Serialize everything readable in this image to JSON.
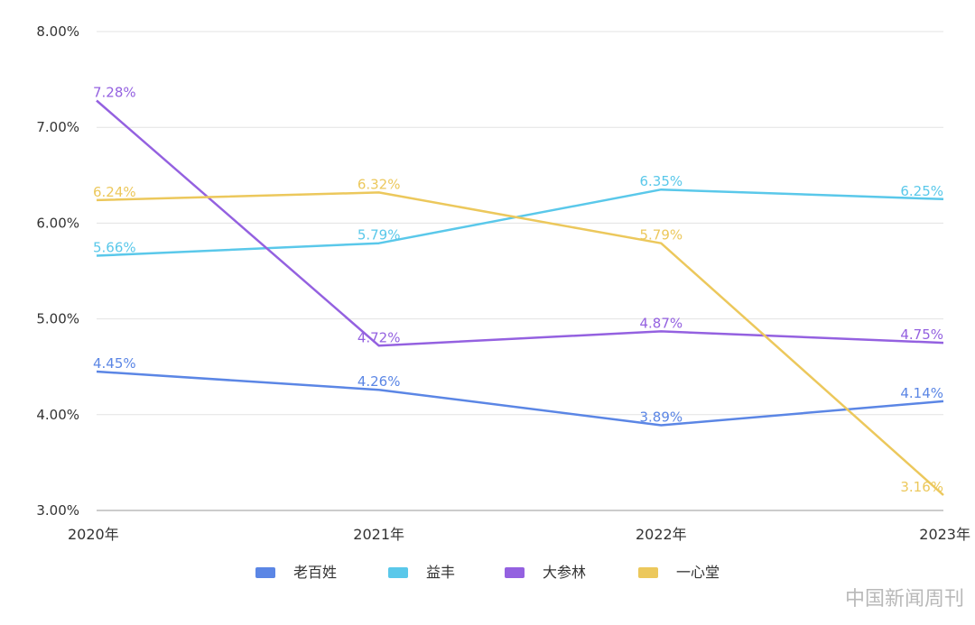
{
  "chart_data": {
    "type": "line",
    "x": [
      "2020年",
      "2021年",
      "2022年",
      "2023年"
    ],
    "ylim": [
      3.0,
      8.0
    ],
    "yticks": [
      "3.00%",
      "4.00%",
      "5.00%",
      "6.00%",
      "7.00%",
      "8.00%"
    ],
    "grid": true,
    "legend_position": "bottom",
    "series": [
      {
        "name": "老百姓",
        "color": "#5b86e5",
        "values": [
          4.45,
          4.26,
          3.89,
          4.14
        ],
        "labels": [
          "4.45%",
          "4.26%",
          "3.89%",
          "4.14%"
        ]
      },
      {
        "name": "益丰",
        "color": "#5ac8ea",
        "values": [
          5.66,
          5.79,
          6.35,
          6.25
        ],
        "labels": [
          "5.66%",
          "5.79%",
          "6.35%",
          "6.25%"
        ]
      },
      {
        "name": "大参林",
        "color": "#9461e0",
        "values": [
          7.28,
          4.72,
          4.87,
          4.75
        ],
        "labels": [
          "7.28%",
          "4.72%",
          "4.87%",
          "4.75%"
        ]
      },
      {
        "name": "一心堂",
        "color": "#ecc85c",
        "values": [
          6.24,
          6.32,
          5.79,
          3.16
        ],
        "labels": [
          "6.24%",
          "6.32%",
          "5.79%",
          "3.16%"
        ]
      }
    ]
  },
  "watermark": "中国新闻周刊"
}
